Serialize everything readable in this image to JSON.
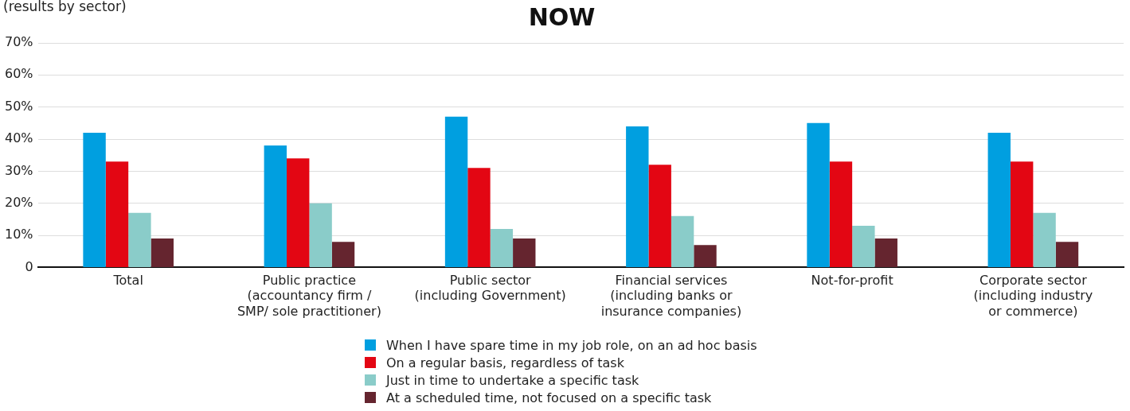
{
  "chart_data": {
    "type": "bar",
    "title": "NOW",
    "subtitle": "(results by sector)",
    "categories": [
      "Total",
      "Public practice\n(accountancy firm /\nSMP/ sole practitioner)",
      "Public sector\n(including Government)",
      "Financial services\n(including banks or\ninsurance companies)",
      "Not-for-profit",
      "Corporate sector\n(including industry\nor commerce)"
    ],
    "series": [
      {
        "name": "When I have spare time in my job role, on an ad hoc basis",
        "color": "#009fe0",
        "values": [
          42,
          38,
          47,
          44,
          45,
          42
        ]
      },
      {
        "name": "On a regular basis, regardless of task",
        "color": "#e30613",
        "values": [
          33,
          34,
          31,
          32,
          33,
          33
        ]
      },
      {
        "name": "Just in time to undertake a specific task",
        "color": "#8accc9",
        "values": [
          17,
          20,
          12,
          16,
          13,
          17
        ]
      },
      {
        "name": "At a scheduled time, not focused on a specific task",
        "color": "#65252f",
        "values": [
          9,
          8,
          9,
          7,
          9,
          8
        ]
      }
    ],
    "ylim": [
      0,
      70
    ],
    "yticks": [
      {
        "value": 0,
        "label": "0"
      },
      {
        "value": 10,
        "label": "10%"
      },
      {
        "value": 20,
        "label": "20%"
      },
      {
        "value": 30,
        "label": "30%"
      },
      {
        "value": 40,
        "label": "40%"
      },
      {
        "value": 50,
        "label": "50%"
      },
      {
        "value": 60,
        "label": "60%"
      },
      {
        "value": 70,
        "label": "70%"
      }
    ],
    "grid": "y",
    "legend": "bottom"
  }
}
